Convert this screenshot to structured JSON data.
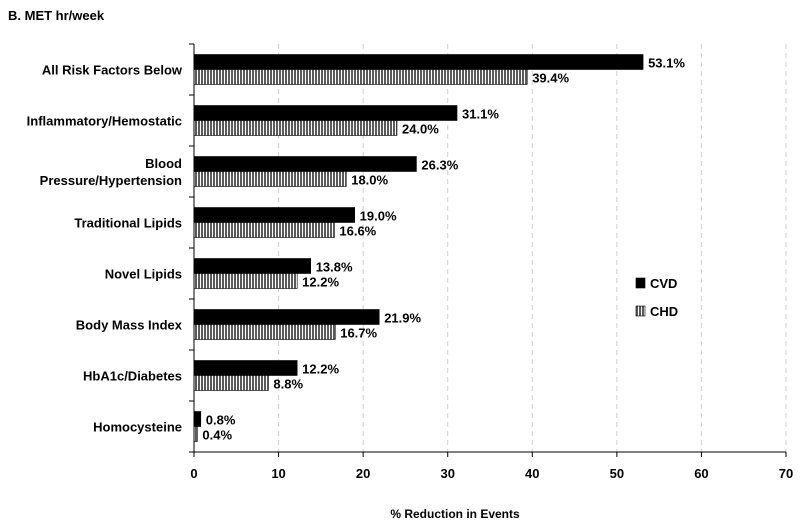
{
  "chart_data": {
    "type": "bar",
    "orientation": "horizontal",
    "title": "B.   MET hr/week",
    "xlabel": "% Reduction in Events",
    "ylabel": "",
    "xlim": [
      0,
      70
    ],
    "xticks": [
      0,
      10,
      20,
      30,
      40,
      50,
      60,
      70
    ],
    "grid": "vertical dashed",
    "legend_position": "right",
    "categories": [
      [
        "All Risk Factors Below"
      ],
      [
        "Inflammatory/Hemostatic"
      ],
      [
        "Blood",
        "Pressure/Hypertension"
      ],
      [
        "Traditional Lipids"
      ],
      [
        "Novel Lipids"
      ],
      [
        "Body Mass Index"
      ],
      [
        "HbA1c/Diabetes"
      ],
      [
        "Homocysteine"
      ]
    ],
    "series": [
      {
        "name": "CVD",
        "color": "#000000",
        "fill": "solid",
        "values": [
          53.1,
          31.1,
          26.3,
          19.0,
          13.8,
          21.9,
          12.2,
          0.8
        ],
        "labels": [
          "53.1%",
          "31.1%",
          "26.3%",
          "19.0%",
          "13.8%",
          "21.9%",
          "12.2%",
          "0.8%"
        ]
      },
      {
        "name": "CHD",
        "color": "#808080",
        "fill": "vertical-stripes",
        "values": [
          39.4,
          24.0,
          18.0,
          16.6,
          12.2,
          16.7,
          8.8,
          0.4
        ],
        "labels": [
          "39.4%",
          "24.0%",
          "18.0%",
          "16.6%",
          "12.2%",
          "16.7%",
          "8.8%",
          "0.4%"
        ]
      }
    ]
  }
}
